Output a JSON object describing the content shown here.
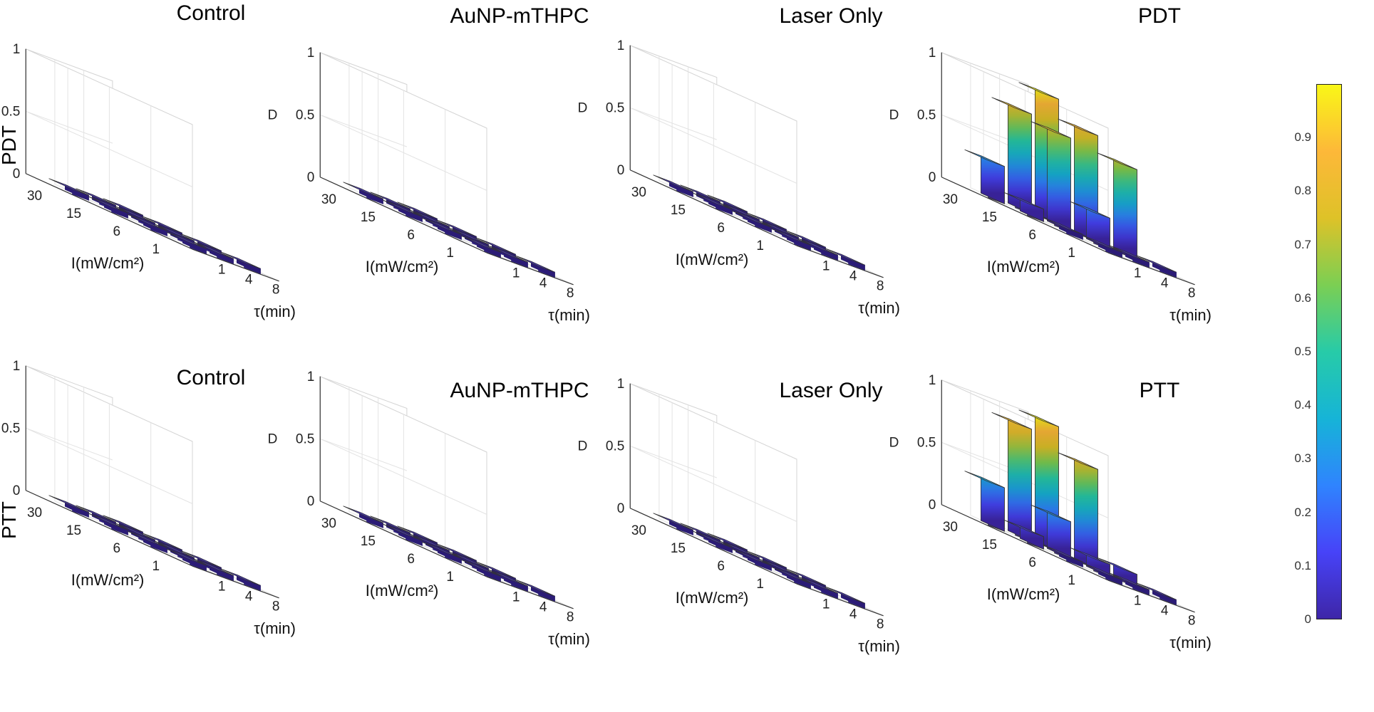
{
  "row_labels": [
    "PDT",
    "PTT"
  ],
  "colorbar": {
    "ticks": [
      "0",
      "0.1",
      "0.2",
      "0.3",
      "0.4",
      "0.5",
      "0.6",
      "0.7",
      "0.8",
      "0.9"
    ],
    "tick_values": [
      0,
      0.1,
      0.2,
      0.3,
      0.4,
      0.5,
      0.6,
      0.7,
      0.8,
      0.9
    ],
    "range": [
      0,
      1
    ],
    "colormap": "parula",
    "stops": [
      "#3e26a8",
      "#4743f8",
      "#2f84fe",
      "#16b4d7",
      "#27cba8",
      "#7bcf53",
      "#dec228",
      "#fdb839",
      "#f9f717"
    ]
  },
  "chart_data": [
    {
      "type": "bar3d",
      "title": "Control",
      "row": "PDT",
      "x_label": "τ(min)",
      "y_label": "I(mW/cm²)",
      "z_label": "D",
      "x_ticks": [
        "1",
        "4",
        "8"
      ],
      "y_ticks": [
        "1",
        "6",
        "15",
        "30"
      ],
      "z_ticks": [
        "0",
        "0.5",
        "1"
      ],
      "zlim": [
        0,
        1
      ],
      "values": [
        [
          0,
          0.0,
          0.0
        ],
        [
          0.0,
          0.0,
          0.0
        ],
        [
          0.0,
          0.0,
          0.0
        ],
        [
          0.0,
          0.0,
          0
        ]
      ]
    },
    {
      "type": "bar3d",
      "title": "AuNP-mTHPC",
      "row": "PDT",
      "x_label": "τ(min)",
      "y_label": "I(mW/cm²)",
      "z_label": "D",
      "x_ticks": [
        "1",
        "4",
        "8"
      ],
      "y_ticks": [
        "1",
        "6",
        "15",
        "30"
      ],
      "z_ticks": [
        "0",
        "0.5",
        "1"
      ],
      "zlim": [
        0,
        1
      ],
      "values": [
        [
          0,
          0.0,
          0.0
        ],
        [
          0.0,
          0.0,
          0.0
        ],
        [
          0.0,
          0.0,
          0.0
        ],
        [
          0.0,
          0.0,
          0
        ]
      ]
    },
    {
      "type": "bar3d",
      "title": "Laser Only",
      "row": "PDT",
      "x_label": "τ(min)",
      "y_label": "I(mW/cm²)",
      "z_label": "D",
      "x_ticks": [
        "1",
        "4",
        "8"
      ],
      "y_ticks": [
        "1",
        "6",
        "15",
        "30"
      ],
      "z_ticks": [
        "0",
        "0.5",
        "1"
      ],
      "zlim": [
        0,
        1
      ],
      "values": [
        [
          0,
          0.0,
          0.0
        ],
        [
          0.0,
          0.0,
          0.0
        ],
        [
          0.0,
          0.0,
          0.0
        ],
        [
          0.0,
          0.0,
          0
        ]
      ]
    },
    {
      "type": "bar3d",
      "title": "PDT",
      "row": "PDT",
      "x_label": "τ(min)",
      "y_label": "I(mW/cm²)",
      "z_label": "D",
      "x_ticks": [
        "1",
        "4",
        "8"
      ],
      "y_ticks": [
        "1",
        "6",
        "15",
        "30"
      ],
      "z_ticks": [
        "0",
        "0.5",
        "1"
      ],
      "zlim": [
        0,
        1
      ],
      "values": [
        [
          0.0,
          0.0,
          0.0
        ],
        [
          0.0,
          0.25,
          0.72
        ],
        [
          0.1,
          0.75,
          0.85
        ],
        [
          0.3,
          0.8,
          1.0
        ]
      ]
    },
    {
      "type": "bar3d",
      "title": "Control",
      "row": "PTT",
      "x_label": "τ(min)",
      "y_label": "I(mW/cm²)",
      "z_label": "D",
      "x_ticks": [
        "1",
        "4",
        "8"
      ],
      "y_ticks": [
        "1",
        "6",
        "15",
        "30"
      ],
      "z_ticks": [
        "0",
        "0.5",
        "1"
      ],
      "zlim": [
        0,
        1
      ],
      "values": [
        [
          0,
          0.0,
          0.0
        ],
        [
          0.0,
          0.0,
          0.0
        ],
        [
          0.0,
          0.0,
          0.0
        ],
        [
          0.0,
          0.0,
          0
        ]
      ]
    },
    {
      "type": "bar3d",
      "title": "AuNP-mTHPC",
      "row": "PTT",
      "x_label": "τ(min)",
      "y_label": "I(mW/cm²)",
      "z_label": "D",
      "x_ticks": [
        "1",
        "4",
        "8"
      ],
      "y_ticks": [
        "1",
        "6",
        "15",
        "30"
      ],
      "z_ticks": [
        "0",
        "0.5",
        "1"
      ],
      "zlim": [
        0,
        1
      ],
      "values": [
        [
          0,
          0.0,
          0.0
        ],
        [
          0.0,
          0.0,
          0.0
        ],
        [
          0.0,
          0.0,
          0.0
        ],
        [
          0.0,
          0.0,
          0
        ]
      ]
    },
    {
      "type": "bar3d",
      "title": "Laser Only",
      "row": "PTT",
      "x_label": "τ(min)",
      "y_label": "I(mW/cm²)",
      "z_label": "D",
      "x_ticks": [
        "1",
        "4",
        "8"
      ],
      "y_ticks": [
        "1",
        "6",
        "15",
        "30"
      ],
      "z_ticks": [
        "0",
        "0.5",
        "1"
      ],
      "zlim": [
        0,
        1
      ],
      "values": [
        [
          0,
          0.0,
          0.0
        ],
        [
          0.0,
          0.0,
          0.0
        ],
        [
          0.0,
          0.0,
          0.0
        ],
        [
          0.0,
          0.0,
          0
        ]
      ]
    },
    {
      "type": "bar3d",
      "title": "PTT",
      "row": "PTT",
      "x_label": "τ(min)",
      "y_label": "I(mW/cm²)",
      "z_label": "D",
      "x_ticks": [
        "1",
        "4",
        "8"
      ],
      "y_ticks": [
        "1",
        "6",
        "15",
        "30"
      ],
      "z_ticks": [
        "0",
        "0.5",
        "1"
      ],
      "zlim": [
        0,
        1
      ],
      "values": [
        [
          0.0,
          0.0,
          0.0
        ],
        [
          0.0,
          0.1,
          0.1
        ],
        [
          0.1,
          0.3,
          0.8
        ],
        [
          0.35,
          0.9,
          1.0
        ]
      ]
    }
  ]
}
